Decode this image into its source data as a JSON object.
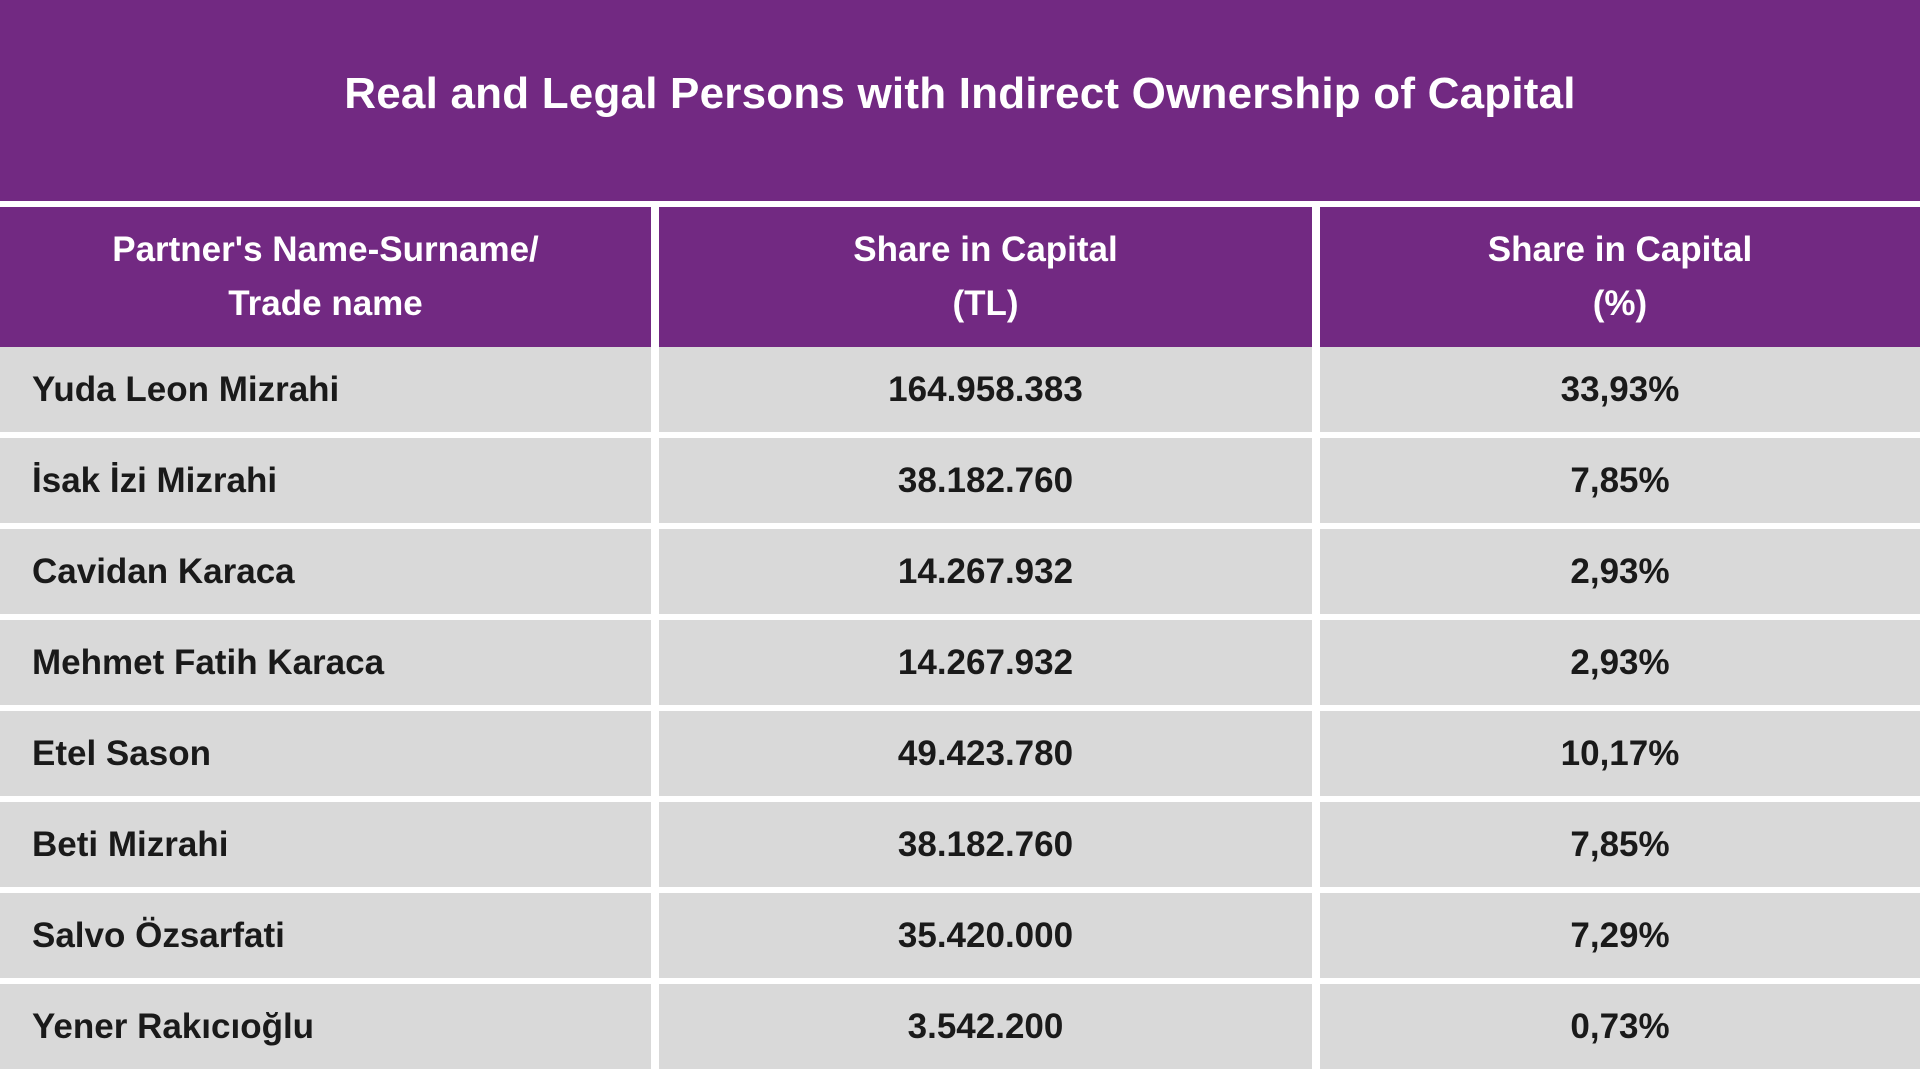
{
  "title": "Real and Legal Persons with Indirect Ownership of Capital",
  "colors": {
    "header_purple": "#722982",
    "row_gray": "#d9d9d9",
    "divider_white": "#ffffff",
    "header_text": "#ffffff",
    "body_text": "#1a1a1a"
  },
  "chart_data": {
    "type": "table",
    "title": "Real and Legal Persons with Indirect Ownership of Capital",
    "columns": [
      {
        "line1": "Partner's Name-Surname/",
        "line2": "Trade name"
      },
      {
        "line1": "Share in Capital",
        "line2": "(TL)"
      },
      {
        "line1": "Share in Capital",
        "line2": "(%)"
      }
    ],
    "rows": [
      {
        "name": "Yuda Leon Mizrahi",
        "share_tl": "164.958.383",
        "share_pct": "33,93%"
      },
      {
        "name": "İsak İzi Mizrahi",
        "share_tl": "38.182.760",
        "share_pct": "7,85%"
      },
      {
        "name": "Cavidan Karaca",
        "share_tl": "14.267.932",
        "share_pct": "2,93%"
      },
      {
        "name": "Mehmet Fatih Karaca",
        "share_tl": "14.267.932",
        "share_pct": "2,93%"
      },
      {
        "name": "Etel Sason",
        "share_tl": "49.423.780",
        "share_pct": "10,17%"
      },
      {
        "name": "Beti Mizrahi",
        "share_tl": "38.182.760",
        "share_pct": "7,85%"
      },
      {
        "name": "Salvo Özsarfati",
        "share_tl": "35.420.000",
        "share_pct": "7,29%"
      },
      {
        "name": "Yener Rakıcıoğlu",
        "share_tl": "3.542.200",
        "share_pct": "0,73%"
      }
    ]
  }
}
